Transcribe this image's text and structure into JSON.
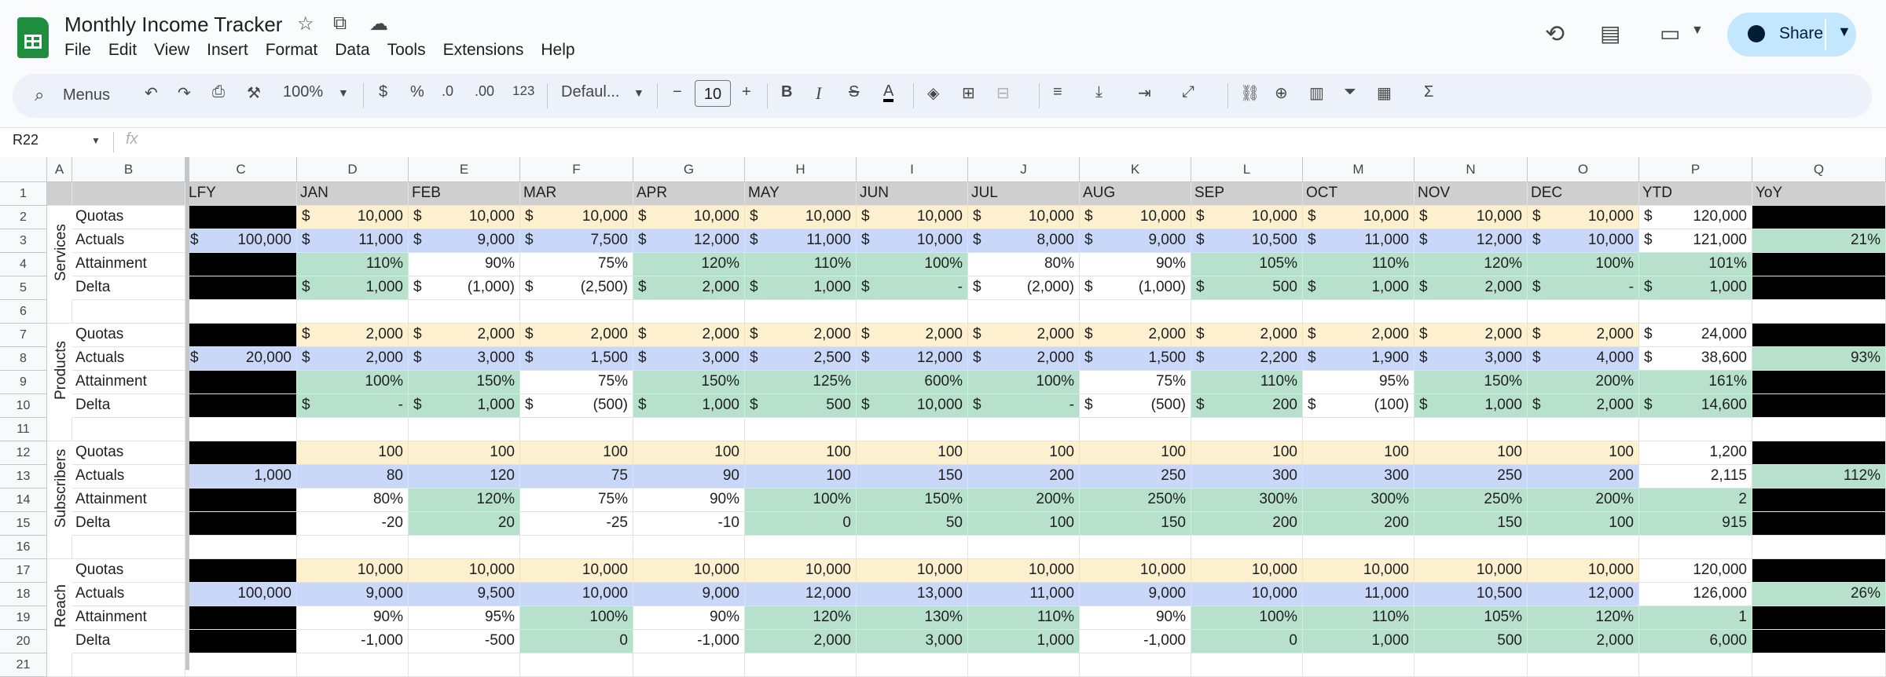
{
  "app": {
    "title": "Monthly Income Tracker",
    "share_label": "Share",
    "menu": [
      "File",
      "Edit",
      "View",
      "Insert",
      "Format",
      "Data",
      "Tools",
      "Extensions",
      "Help"
    ]
  },
  "toolbar": {
    "search_label": "Menus",
    "zoom": "100%",
    "currency": "$",
    "percent": "%",
    "dec_less": ".0",
    "dec_more": ".00",
    "format_123": "123",
    "font": "Defaul...",
    "font_size": "10"
  },
  "formula": {
    "name_box": "R22",
    "fx": "fx"
  },
  "colors": {
    "quota": "#fdf0cf",
    "actual": "#c9d7f8",
    "green": "#b7e1cd",
    "black": "#000000",
    "header": "#cfcfcf"
  },
  "columns": [
    "A",
    "B",
    "C",
    "D",
    "E",
    "F",
    "G",
    "H",
    "I",
    "J",
    "K",
    "L",
    "M",
    "N",
    "O",
    "P",
    "Q"
  ],
  "rows": [
    "1",
    "2",
    "3",
    "4",
    "5",
    "6",
    "7",
    "8",
    "9",
    "10",
    "11",
    "12",
    "13",
    "14",
    "15",
    "16",
    "17",
    "18",
    "19",
    "20",
    "21"
  ],
  "header_row": [
    "LFY",
    "JAN",
    "FEB",
    "MAR",
    "APR",
    "MAY",
    "JUN",
    "JUL",
    "AUG",
    "SEP",
    "OCT",
    "NOV",
    "DEC",
    "YTD",
    "YoY"
  ],
  "sections": [
    {
      "name": "Services",
      "currency": true,
      "rows": [
        {
          "label": "Quotas",
          "lfy": "",
          "vals": [
            "10,000",
            "10,000",
            "10,000",
            "10,000",
            "10,000",
            "10,000",
            "10,000",
            "10,000",
            "10,000",
            "10,000",
            "10,000",
            "10,000"
          ],
          "ytd": "120,000",
          "yoy": ""
        },
        {
          "label": "Actuals",
          "lfy": "100,000",
          "vals": [
            "11,000",
            "9,000",
            "7,500",
            "12,000",
            "11,000",
            "10,000",
            "8,000",
            "9,000",
            "10,500",
            "11,000",
            "12,000",
            "10,000"
          ],
          "ytd": "121,000",
          "yoy": "21%"
        },
        {
          "label": "Attainment",
          "lfy": "",
          "vals": [
            "110%",
            "90%",
            "75%",
            "120%",
            "110%",
            "100%",
            "80%",
            "90%",
            "105%",
            "110%",
            "120%",
            "100%"
          ],
          "ytd": "101%",
          "yoy": ""
        },
        {
          "label": "Delta",
          "lfy": "",
          "vals": [
            "1,000",
            "(1,000)",
            "(2,500)",
            "2,000",
            "1,000",
            "-",
            "(2,000)",
            "(1,000)",
            "500",
            "1,000",
            "2,000",
            "-"
          ],
          "ytd": "1,000",
          "yoy": ""
        }
      ]
    },
    {
      "name": "Products",
      "currency": true,
      "rows": [
        {
          "label": "Quotas",
          "lfy": "",
          "vals": [
            "2,000",
            "2,000",
            "2,000",
            "2,000",
            "2,000",
            "2,000",
            "2,000",
            "2,000",
            "2,000",
            "2,000",
            "2,000",
            "2,000"
          ],
          "ytd": "24,000",
          "yoy": ""
        },
        {
          "label": "Actuals",
          "lfy": "20,000",
          "vals": [
            "2,000",
            "3,000",
            "1,500",
            "3,000",
            "2,500",
            "12,000",
            "2,000",
            "1,500",
            "2,200",
            "1,900",
            "3,000",
            "4,000"
          ],
          "ytd": "38,600",
          "yoy": "93%"
        },
        {
          "label": "Attainment",
          "lfy": "",
          "vals": [
            "100%",
            "150%",
            "75%",
            "150%",
            "125%",
            "600%",
            "100%",
            "75%",
            "110%",
            "95%",
            "150%",
            "200%"
          ],
          "ytd": "161%",
          "yoy": ""
        },
        {
          "label": "Delta",
          "lfy": "",
          "vals": [
            "-",
            "1,000",
            "(500)",
            "1,000",
            "500",
            "10,000",
            "-",
            "(500)",
            "200",
            "(100)",
            "1,000",
            "2,000"
          ],
          "ytd": "14,600",
          "yoy": ""
        }
      ]
    },
    {
      "name": "Subscribers",
      "currency": false,
      "rows": [
        {
          "label": "Quotas",
          "lfy": "",
          "vals": [
            "100",
            "100",
            "100",
            "100",
            "100",
            "100",
            "100",
            "100",
            "100",
            "100",
            "100",
            "100"
          ],
          "ytd": "1,200",
          "yoy": ""
        },
        {
          "label": "Actuals",
          "lfy": "1,000",
          "vals": [
            "80",
            "120",
            "75",
            "90",
            "100",
            "150",
            "200",
            "250",
            "300",
            "300",
            "250",
            "200"
          ],
          "ytd": "2,115",
          "yoy": "112%"
        },
        {
          "label": "Attainment",
          "lfy": "",
          "vals": [
            "80%",
            "120%",
            "75%",
            "90%",
            "100%",
            "150%",
            "200%",
            "250%",
            "300%",
            "300%",
            "250%",
            "200%"
          ],
          "ytd": "2",
          "yoy": ""
        },
        {
          "label": "Delta",
          "lfy": "",
          "vals": [
            "-20",
            "20",
            "-25",
            "-10",
            "0",
            "50",
            "100",
            "150",
            "200",
            "200",
            "150",
            "100"
          ],
          "ytd": "915",
          "yoy": ""
        }
      ]
    },
    {
      "name": "Reach",
      "currency": false,
      "rows": [
        {
          "label": "Quotas",
          "lfy": "",
          "vals": [
            "10,000",
            "10,000",
            "10,000",
            "10,000",
            "10,000",
            "10,000",
            "10,000",
            "10,000",
            "10,000",
            "10,000",
            "10,000",
            "10,000"
          ],
          "ytd": "120,000",
          "yoy": ""
        },
        {
          "label": "Actuals",
          "lfy": "100,000",
          "vals": [
            "9,000",
            "9,500",
            "10,000",
            "9,000",
            "12,000",
            "13,000",
            "11,000",
            "9,000",
            "10,000",
            "11,000",
            "10,500",
            "12,000"
          ],
          "ytd": "126,000",
          "yoy": "26%"
        },
        {
          "label": "Attainment",
          "lfy": "",
          "vals": [
            "90%",
            "95%",
            "100%",
            "90%",
            "120%",
            "130%",
            "110%",
            "90%",
            "100%",
            "110%",
            "105%",
            "120%"
          ],
          "ytd": "1",
          "yoy": ""
        },
        {
          "label": "Delta",
          "lfy": "",
          "vals": [
            "-1,000",
            "-500",
            "0",
            "-1,000",
            "2,000",
            "3,000",
            "1,000",
            "-1,000",
            "0",
            "1,000",
            "500",
            "2,000"
          ],
          "ytd": "6,000",
          "yoy": ""
        }
      ]
    }
  ]
}
